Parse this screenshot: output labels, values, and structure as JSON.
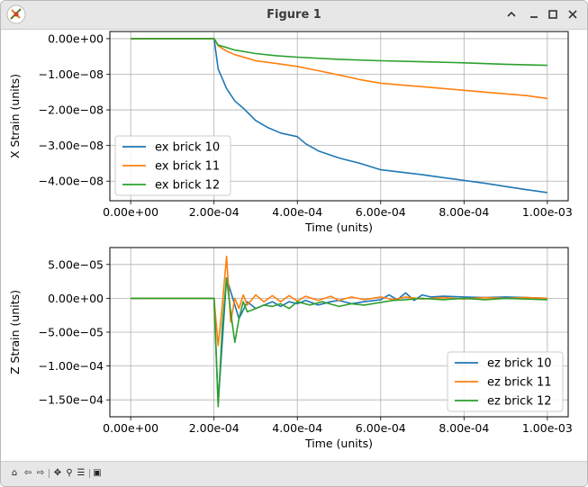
{
  "window": {
    "title": "Figure 1"
  },
  "toolbar": {
    "items": [
      {
        "icon": "home-icon"
      },
      {
        "icon": "back-icon"
      },
      {
        "icon": "forward-icon"
      },
      {
        "icon": "pan-icon"
      },
      {
        "icon": "zoom-icon"
      },
      {
        "icon": "configure-subplots-icon"
      },
      {
        "icon": "save-icon"
      }
    ]
  },
  "colors": {
    "series1": "#1f77b4",
    "series2": "#ff7f0e",
    "series3": "#2ca02c",
    "grid": "#b0b0b0"
  },
  "chart_data": [
    {
      "type": "line",
      "xlabel": "Time (units)",
      "ylabel": "X Strain (units)",
      "xlim": [
        -5e-05,
        0.00105
      ],
      "ylim": [
        -4.55e-08,
        2e-09
      ],
      "xticks": [
        0,
        0.0002,
        0.0004,
        0.0006,
        0.0008,
        0.001
      ],
      "xtick_labels": [
        "0.00e+00",
        "2.00e-04",
        "4.00e-04",
        "6.00e-04",
        "8.00e-04",
        "1.00e-03"
      ],
      "yticks": [
        0,
        -1e-08,
        -2e-08,
        -3e-08,
        -4e-08
      ],
      "ytick_labels": [
        "0.00e+00",
        "−1.00e−08",
        "−2.00e−08",
        "−3.00e−08",
        "−4.00e−08"
      ],
      "grid": true,
      "legend": "lower-left",
      "series": [
        {
          "name": "ex brick 10",
          "color": "#1f77b4",
          "x": [
            0,
            0.0002,
            0.00021,
            0.00023,
            0.00025,
            0.00027,
            0.0003,
            0.00033,
            0.00036,
            0.0004,
            0.00042,
            0.00045,
            0.0005,
            0.00055,
            0.0006,
            0.00065,
            0.0007,
            0.00075,
            0.0008,
            0.00085,
            0.0009,
            0.00095,
            0.001
          ],
          "y": [
            0,
            0,
            -8.5e-09,
            -1.4e-08,
            -1.75e-08,
            -1.95e-08,
            -2.3e-08,
            -2.5e-08,
            -2.65e-08,
            -2.75e-08,
            -2.95e-08,
            -3.15e-08,
            -3.35e-08,
            -3.5e-08,
            -3.68e-08,
            -3.75e-08,
            -3.82e-08,
            -3.9e-08,
            -3.98e-08,
            -4.06e-08,
            -4.15e-08,
            -4.24e-08,
            -4.32e-08
          ]
        },
        {
          "name": "ex brick 11",
          "color": "#ff7f0e",
          "x": [
            0,
            0.0002,
            0.00021,
            0.00023,
            0.00025,
            0.00028,
            0.0003,
            0.00035,
            0.0004,
            0.00045,
            0.0005,
            0.00055,
            0.0006,
            0.00065,
            0.0007,
            0.00075,
            0.0008,
            0.00085,
            0.0009,
            0.00095,
            0.001
          ],
          "y": [
            0,
            0,
            -2e-09,
            -3.5e-09,
            -4.5e-09,
            -5.5e-09,
            -6.2e-09,
            -7e-09,
            -7.8e-09,
            -9e-09,
            -1.02e-08,
            -1.15e-08,
            -1.25e-08,
            -1.3e-08,
            -1.35e-08,
            -1.4e-08,
            -1.45e-08,
            -1.5e-08,
            -1.55e-08,
            -1.6e-08,
            -1.68e-08
          ]
        },
        {
          "name": "ex brick 12",
          "color": "#2ca02c",
          "x": [
            0,
            0.0002,
            0.00021,
            0.00023,
            0.00025,
            0.0003,
            0.00035,
            0.0004,
            0.0005,
            0.0006,
            0.0007,
            0.0008,
            0.0009,
            0.001
          ],
          "y": [
            0,
            0,
            -1.8e-09,
            -2.5e-09,
            -3.2e-09,
            -4.2e-09,
            -4.8e-09,
            -5.2e-09,
            -5.8e-09,
            -6.2e-09,
            -6.5e-09,
            -6.8e-09,
            -7.2e-09,
            -7.5e-09
          ]
        }
      ]
    },
    {
      "type": "line",
      "xlabel": "Time (units)",
      "ylabel": "Z Strain (units)",
      "xlim": [
        -5e-05,
        0.00105
      ],
      "ylim": [
        -0.000175,
        7.5e-05
      ],
      "xticks": [
        0,
        0.0002,
        0.0004,
        0.0006,
        0.0008,
        0.001
      ],
      "xtick_labels": [
        "0.00e+00",
        "2.00e-04",
        "4.00e-04",
        "6.00e-04",
        "8.00e-04",
        "1.00e-03"
      ],
      "yticks": [
        5e-05,
        0,
        -5e-05,
        -0.0001,
        -0.00015
      ],
      "ytick_labels": [
        "5.00e−05",
        "0.00e+00",
        "−5.00e−05",
        "−1.00e−04",
        "−1.50e−04"
      ],
      "grid": true,
      "legend": "lower-right",
      "series": [
        {
          "name": "ez brick 10",
          "color": "#1f77b4",
          "x": [
            0,
            0.0002,
            0.00021,
            0.00023,
            0.00024,
            0.00026,
            0.00028,
            0.0003,
            0.00032,
            0.00034,
            0.00036,
            0.00038,
            0.0004,
            0.00042,
            0.00045,
            0.00048,
            0.0005,
            0.00053,
            0.00056,
            0.0006,
            0.00062,
            0.00064,
            0.00066,
            0.00068,
            0.0007,
            0.00072,
            0.00075,
            0.0008,
            0.00085,
            0.0009,
            0.00095,
            0.001
          ],
          "y": [
            0,
            0,
            -0.000155,
            3e-05,
            1e-05,
            -3e-05,
            -5e-06,
            -1.5e-05,
            -1e-05,
            -5e-06,
            -1.2e-05,
            -5e-06,
            -8e-06,
            -3e-06,
            -1e-05,
            -5e-06,
            -3e-06,
            -8e-06,
            -5e-06,
            -2e-06,
            5e-06,
            -2e-06,
            8e-06,
            -3e-06,
            5e-06,
            2e-06,
            3e-06,
            2e-06,
            1e-06,
            2e-06,
            1e-06,
            0
          ]
        },
        {
          "name": "ez brick 11",
          "color": "#ff7f0e",
          "x": [
            0,
            0.0002,
            0.00021,
            0.00022,
            0.00023,
            0.00024,
            0.00025,
            0.00026,
            0.00027,
            0.00028,
            0.0003,
            0.00032,
            0.00034,
            0.00036,
            0.00038,
            0.0004,
            0.00042,
            0.00045,
            0.00048,
            0.0005,
            0.00053,
            0.00056,
            0.0006,
            0.00063,
            0.00066,
            0.0007,
            0.00075,
            0.0008,
            0.00085,
            0.0009,
            0.00095,
            0.001
          ],
          "y": [
            0,
            0,
            -7e-05,
            -1e-05,
            6.2e-05,
            -3.5e-05,
            0,
            -1.5e-05,
            5e-06,
            -1e-05,
            5e-06,
            -5e-06,
            4e-06,
            -5e-06,
            4e-06,
            -4e-06,
            3e-06,
            -3e-06,
            3e-06,
            -3e-06,
            2e-06,
            -2e-06,
            2e-06,
            -2e-06,
            2e-06,
            -1e-06,
            1e-06,
            -1e-06,
            1e-06,
            0,
            1e-06,
            0
          ]
        },
        {
          "name": "ez brick 12",
          "color": "#2ca02c",
          "x": [
            0,
            0.0002,
            0.00021,
            0.00022,
            0.00023,
            0.00024,
            0.00025,
            0.00026,
            0.00027,
            0.00028,
            0.0003,
            0.00032,
            0.00034,
            0.00036,
            0.00038,
            0.0004,
            0.00043,
            0.00046,
            0.0005,
            0.00053,
            0.00056,
            0.0006,
            0.00063,
            0.00066,
            0.0007,
            0.00075,
            0.0008,
            0.00085,
            0.0009,
            0.00095,
            0.001
          ],
          "y": [
            0,
            0,
            -0.00016,
            -4e-05,
            3e-05,
            -2e-05,
            -6.5e-05,
            -3e-05,
            -5e-06,
            -2e-05,
            -1.5e-05,
            -1e-05,
            -1.2e-05,
            -8e-06,
            -1.5e-05,
            -5e-06,
            -1e-05,
            -5e-06,
            -1.2e-05,
            -8e-06,
            -1e-05,
            -6e-06,
            -3e-06,
            -2e-06,
            0,
            -2e-06,
            0,
            -2e-06,
            0,
            -1e-06,
            -2e-06
          ]
        }
      ]
    }
  ]
}
